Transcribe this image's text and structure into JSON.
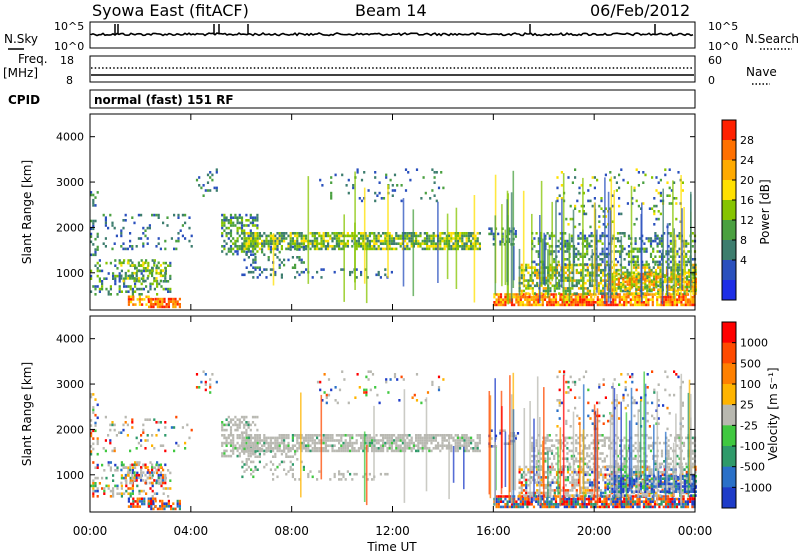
{
  "header": {
    "station": "Syowa East (fitACF)",
    "beam": "Beam 14",
    "date": "06/Feb/2012"
  },
  "nsky_panel": {
    "left_label": "N.Sky",
    "right_label": "N.Search",
    "left_ticks": [
      "10^5",
      "10^0"
    ],
    "right_ticks": [
      "10^5",
      "10^0"
    ],
    "line_style_sky": "solid",
    "line_style_search": "dotted"
  },
  "freq_panel": {
    "label_line1": "Freq.",
    "label_line2": "[MHz]",
    "right_label": "Nave",
    "left_ticks": [
      "18",
      "8"
    ],
    "right_ticks": [
      "60",
      "0"
    ]
  },
  "cpid_panel": {
    "label": "CPID",
    "mode_text": "normal (fast) 151 RF"
  },
  "chart_data": [
    {
      "type": "heatmap",
      "name_key": "power",
      "ylabel": "Slant Range [km]",
      "colorbar_label": "Power [dB]",
      "colorbar_ticks": [
        "28",
        "24",
        "20",
        "16",
        "12",
        "8",
        "4"
      ],
      "colors": [
        "#1e2ee6",
        "#2a50bd",
        "#3d7d6e",
        "#4aa040",
        "#86c400",
        "#ffe000",
        "#ffaa00",
        "#ff7000",
        "#ff2000"
      ],
      "ylim": [
        180,
        4500
      ],
      "yticks": [
        "1000",
        "2000",
        "3000",
        "4000"
      ],
      "xticks": [
        "00:00",
        "04:00",
        "08:00",
        "12:00",
        "16:00",
        "20:00",
        "00:00"
      ],
      "x_hours": [
        0,
        24
      ],
      "grid": false
    },
    {
      "type": "heatmap",
      "name_key": "velocity",
      "ylabel": "Slant Range [km]",
      "colorbar_label": "Velocity [m s⁻¹]",
      "colorbar_ticks": [
        "1000",
        "500",
        "100",
        "25",
        "-25",
        "-100",
        "-500",
        "-1000"
      ],
      "colors": [
        "#1e3cc8",
        "#2a70c8",
        "#2f9a6a",
        "#40c840",
        "#b8b8b0",
        "#ffb400",
        "#ff8000",
        "#ff4a00",
        "#ff0000"
      ],
      "ground_scatter_color": "#b9b9b2",
      "ylim": [
        180,
        4500
      ],
      "yticks": [
        "1000",
        "2000",
        "3000",
        "4000"
      ],
      "xticks": [
        "00:00",
        "04:00",
        "08:00",
        "12:00",
        "16:00",
        "20:00",
        "00:00"
      ],
      "x_hours": [
        0,
        24
      ],
      "grid": false
    }
  ],
  "xlabel": "Time UT"
}
